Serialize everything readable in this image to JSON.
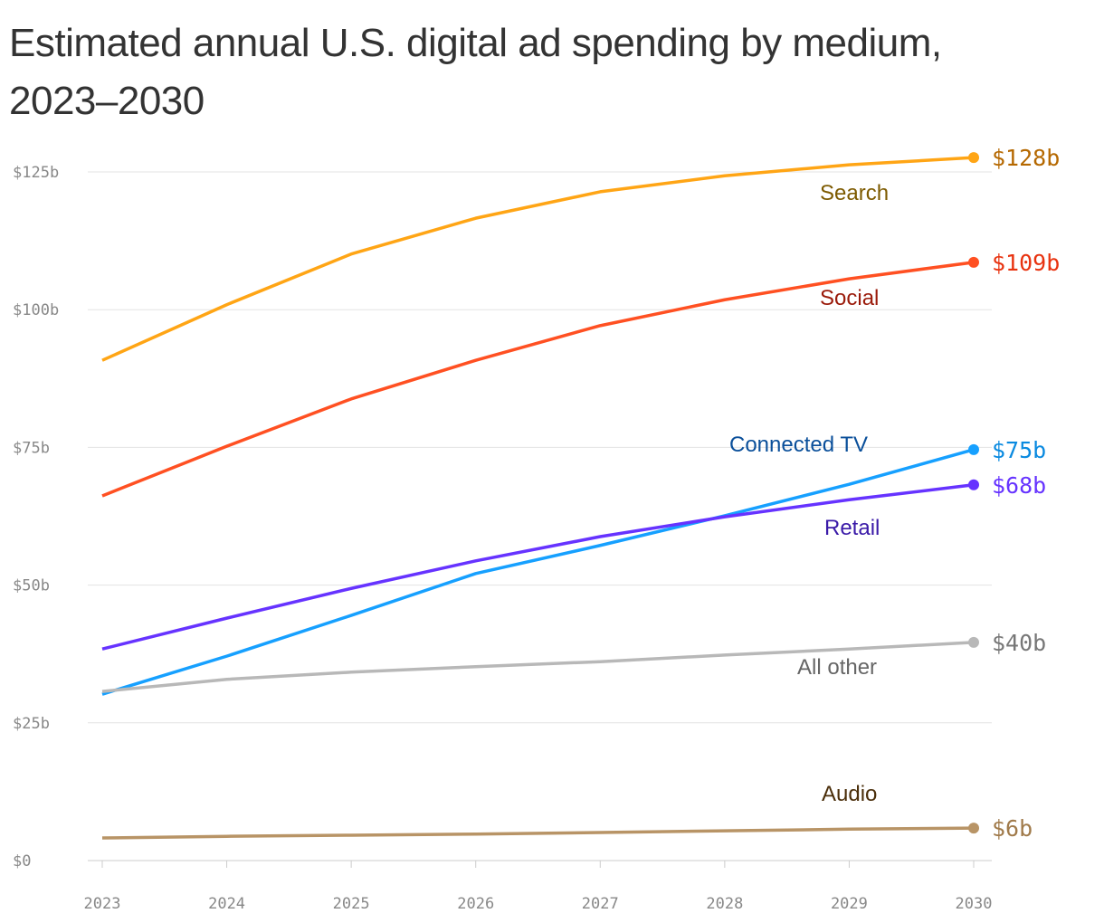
{
  "chart_data": {
    "type": "line",
    "title": "Estimated annual U.S. digital ad spending by medium, 2023–2030",
    "x": [
      2023,
      2024,
      2025,
      2026,
      2027,
      2028,
      2029,
      2030
    ],
    "x_tick_labels": [
      "2023",
      "2024",
      "2025",
      "2026",
      "2027",
      "2028",
      "2029",
      "2030"
    ],
    "ylim": [
      0,
      125
    ],
    "y_ticks": [
      0,
      25,
      50,
      75,
      100,
      125
    ],
    "y_tick_labels": [
      "$0",
      "$25b",
      "$50b",
      "$75b",
      "$100b",
      "$125b"
    ],
    "grid": true,
    "legend": "direct labels",
    "series": [
      {
        "name": "Search",
        "color": "#ffa515",
        "label_color": "#7d5a00",
        "end_color": "#b56800",
        "end_label": "$128b",
        "values": [
          90.8,
          100.9,
          110.1,
          116.6,
          121.4,
          124.3,
          126.3,
          127.6
        ]
      },
      {
        "name": "Social",
        "color": "#ff5022",
        "label_color": "#9a1a0a",
        "end_color": "#e8320f",
        "end_label": "$109b",
        "values": [
          66.2,
          75.2,
          83.8,
          90.8,
          97.1,
          101.8,
          105.6,
          108.6
        ]
      },
      {
        "name": "Connected TV",
        "color": "#16a0ff",
        "label_color": "#0a4f9a",
        "end_color": "#0a8ae0",
        "end_label": "$75b",
        "values": [
          30.2,
          37.1,
          44.5,
          52.1,
          57.2,
          62.6,
          68.3,
          74.6
        ]
      },
      {
        "name": "Retail",
        "color": "#6633ff",
        "label_color": "#3a1aa8",
        "end_color": "#6633ff",
        "end_label": "$68b",
        "values": [
          38.4,
          44.0,
          49.4,
          54.4,
          58.8,
          62.4,
          65.5,
          68.2
        ]
      },
      {
        "name": "All other",
        "color": "#b8b8b8",
        "label_color": "#666666",
        "end_color": "#777777",
        "end_label": "$40b",
        "values": [
          30.7,
          32.9,
          34.2,
          35.2,
          36.1,
          37.3,
          38.4,
          39.6
        ]
      },
      {
        "name": "Audio",
        "color": "#b89466",
        "label_color": "#4a2e0a",
        "end_color": "#a07a4a",
        "end_label": "$6b",
        "values": [
          4.1,
          4.4,
          4.6,
          4.8,
          5.1,
          5.4,
          5.7,
          5.9
        ]
      }
    ]
  }
}
